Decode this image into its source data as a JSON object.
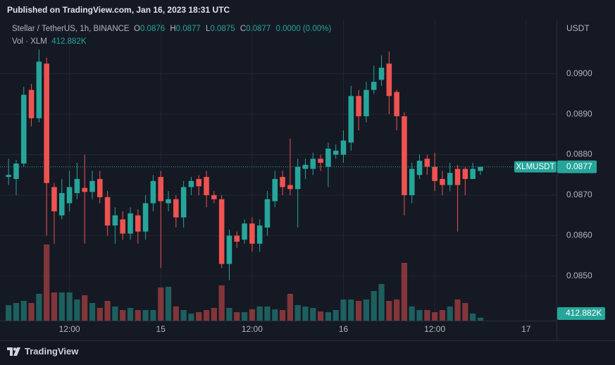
{
  "header": {
    "published": "Published on TradingView.com, Jan 16, 2023 18:31 UTC"
  },
  "legend": {
    "symbol": "Stellar / TetherUS, 1h, BINANCE",
    "o_key": "O",
    "o": "0.0876",
    "h_key": "H",
    "h": "0.0877",
    "l_key": "L",
    "l": "0.0875",
    "c_key": "C",
    "c": "0.0877",
    "change": "0.0000 (0.00%)",
    "vol_key": "Vol · XLM",
    "vol": "412.882K"
  },
  "footer": {
    "brand": "TradingView"
  },
  "chart_data": {
    "type": "candlestick",
    "currency": "USDT",
    "symbol_tag": "XLMUSDT",
    "last_price_label": "0.0877",
    "last_volume_label": "412.882K",
    "up_color": "#26a69a",
    "down_color": "#ef5350",
    "grid": true,
    "xlim": [
      -0.2,
      72
    ],
    "xticks": [
      {
        "value": 8,
        "label": "12:00"
      },
      {
        "value": 20,
        "label": "15"
      },
      {
        "value": 32,
        "label": "12:00"
      },
      {
        "value": 44,
        "label": "16"
      },
      {
        "value": 56,
        "label": "12:00"
      },
      {
        "value": 68,
        "label": "17"
      }
    ],
    "ylim": [
      0.0839,
      0.0913
    ],
    "yticks": [
      {
        "value": 0.085,
        "label": "0.0850"
      },
      {
        "value": 0.086,
        "label": "0.0860"
      },
      {
        "value": 0.087,
        "label": "0.0870"
      },
      {
        "value": 0.088,
        "label": "0.0880"
      },
      {
        "value": 0.089,
        "label": "0.0890"
      },
      {
        "value": 0.09,
        "label": "0.0900"
      }
    ],
    "volume_lim": [
      0,
      42500000
    ],
    "open": [
      0.08745,
      0.0874,
      0.08778,
      0.0896,
      0.0889,
      0.09025,
      0.0872,
      0.0865,
      0.0868,
      0.08705,
      0.08718,
      0.08708,
      0.0874,
      0.08695,
      0.08625,
      0.0864,
      0.08605,
      0.0865,
      0.0861,
      0.0868,
      0.08745,
      0.0868,
      0.0869,
      0.08645,
      0.0872,
      0.0874,
      0.08745,
      0.087,
      0.0869,
      0.0853,
      0.086,
      0.0859,
      0.0863,
      0.0858,
      0.0862,
      0.08685,
      0.08745,
      0.08725,
      0.08715,
      0.08765,
      0.08765,
      0.0879,
      0.0877,
      0.088,
      0.088,
      0.0883,
      0.08945,
      0.08895,
      0.0896,
      0.08985,
      0.09025,
      0.08955,
      0.08895,
      0.087,
      0.0875,
      0.0879,
      0.0877,
      0.0874,
      0.08725,
      0.08765,
      0.08765,
      0.0874,
      0.0876
    ],
    "high": [
      0.0879,
      0.08787,
      0.08968,
      0.08975,
      0.0906,
      0.0904,
      0.0873,
      0.0874,
      0.0876,
      0.0878,
      0.088,
      0.0876,
      0.0876,
      0.0871,
      0.0867,
      0.0866,
      0.0867,
      0.08665,
      0.087,
      0.0875,
      0.0876,
      0.0871,
      0.087,
      0.08735,
      0.08745,
      0.0875,
      0.0876,
      0.0871,
      0.087,
      0.08615,
      0.0861,
      0.0864,
      0.08645,
      0.0864,
      0.0871,
      0.0876,
      0.0876,
      0.0884,
      0.0879,
      0.0879,
      0.08805,
      0.088,
      0.0883,
      0.08825,
      0.0886,
      0.0897,
      0.0896,
      0.0898,
      0.0902,
      0.09045,
      0.09055,
      0.0896,
      0.08905,
      0.0878,
      0.088,
      0.088,
      0.08805,
      0.0876,
      0.0878,
      0.08775,
      0.0877,
      0.0878,
      0.0877
    ],
    "low": [
      0.08725,
      0.087,
      0.0877,
      0.0887,
      0.0888,
      0.086,
      0.0858,
      0.0864,
      0.0866,
      0.0869,
      0.0858,
      0.0869,
      0.0868,
      0.086,
      0.0858,
      0.0859,
      0.0859,
      0.0858,
      0.0859,
      0.0866,
      0.0852,
      0.0866,
      0.0862,
      0.0862,
      0.087,
      0.087,
      0.0867,
      0.0868,
      0.0852,
      0.0849,
      0.0857,
      0.0858,
      0.0856,
      0.0856,
      0.086,
      0.0867,
      0.087,
      0.087,
      0.0862,
      0.0874,
      0.0875,
      0.0876,
      0.0872,
      0.0879,
      0.0878,
      0.0881,
      0.0886,
      0.0888,
      0.0895,
      0.0897,
      0.089,
      0.0886,
      0.0865,
      0.0868,
      0.0874,
      0.0875,
      0.0871,
      0.087,
      0.0871,
      0.0861,
      0.087,
      0.0874,
      0.0875
    ],
    "close": [
      0.0875,
      0.08778,
      0.08948,
      0.0889,
      0.0903,
      0.0873,
      0.0866,
      0.08705,
      0.0872,
      0.0874,
      0.08708,
      0.08735,
      0.08695,
      0.08625,
      0.0865,
      0.08605,
      0.08655,
      0.0861,
      0.0868,
      0.08735,
      0.08685,
      0.0869,
      0.08645,
      0.0872,
      0.08735,
      0.08722,
      0.087,
      0.0869,
      0.0853,
      0.086,
      0.08585,
      0.0863,
      0.0858,
      0.08625,
      0.0869,
      0.0874,
      0.0872,
      0.08715,
      0.0877,
      0.08775,
      0.0879,
      0.0878,
      0.08815,
      0.0881,
      0.08835,
      0.08945,
      0.08895,
      0.0896,
      0.0898,
      0.09015,
      0.08945,
      0.08895,
      0.087,
      0.08765,
      0.08785,
      0.0877,
      0.08735,
      0.08725,
      0.08755,
      0.08725,
      0.0874,
      0.08765,
      0.0877
    ],
    "volume": [
      2200000,
      2500000,
      2800000,
      2500000,
      3800000,
      10800000,
      4000000,
      4000000,
      4000000,
      3000000,
      3600000,
      2500000,
      1800000,
      2800000,
      2000000,
      1500000,
      1800000,
      1500000,
      1500000,
      1500000,
      4700000,
      4800000,
      2000000,
      1500000,
      1000000,
      1200000,
      1500000,
      1800000,
      5000000,
      1800000,
      1200000,
      1200000,
      1600000,
      2000000,
      2000000,
      1600000,
      1500000,
      3800000,
      2200000,
      2000000,
      1800000,
      1300000,
      1200000,
      1500000,
      3000000,
      3000000,
      2800000,
      3000000,
      4200000,
      5200000,
      2800000,
      3000000,
      8200000,
      2000000,
      1500000,
      1500000,
      1200000,
      1500000,
      2000000,
      3000000,
      2500000,
      1000000,
      412882
    ]
  }
}
